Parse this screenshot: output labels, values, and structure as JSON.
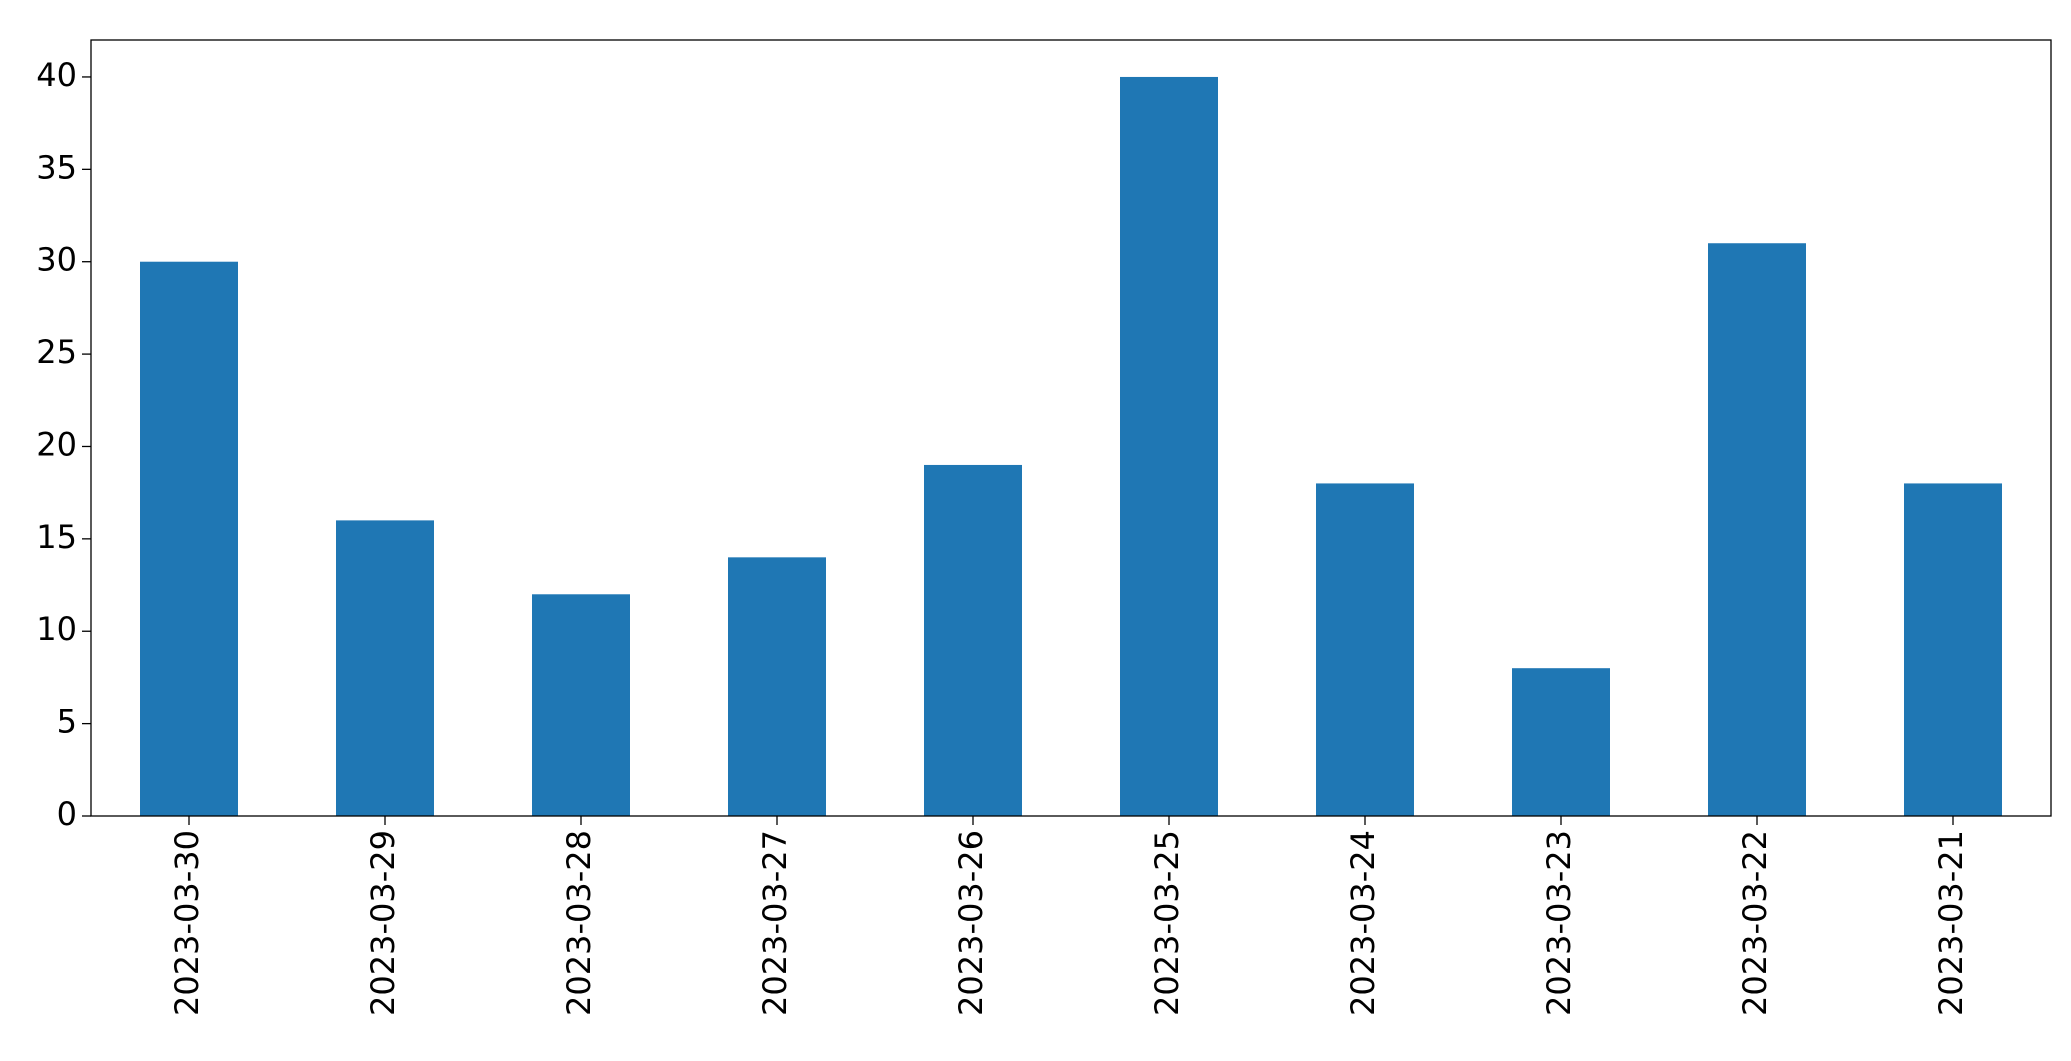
{
  "chart_data": {
    "type": "bar",
    "categories": [
      "2023-03-30",
      "2023-03-29",
      "2023-03-28",
      "2023-03-27",
      "2023-03-26",
      "2023-03-25",
      "2023-03-24",
      "2023-03-23",
      "2023-03-22",
      "2023-03-21"
    ],
    "values": [
      30,
      16,
      12,
      14,
      19,
      40,
      18,
      8,
      31,
      18
    ],
    "color": "#1f77b4",
    "ylim": [
      0,
      42
    ],
    "yticks": [
      0,
      5,
      10,
      15,
      20,
      25,
      30,
      35,
      40
    ],
    "grid": false
  }
}
